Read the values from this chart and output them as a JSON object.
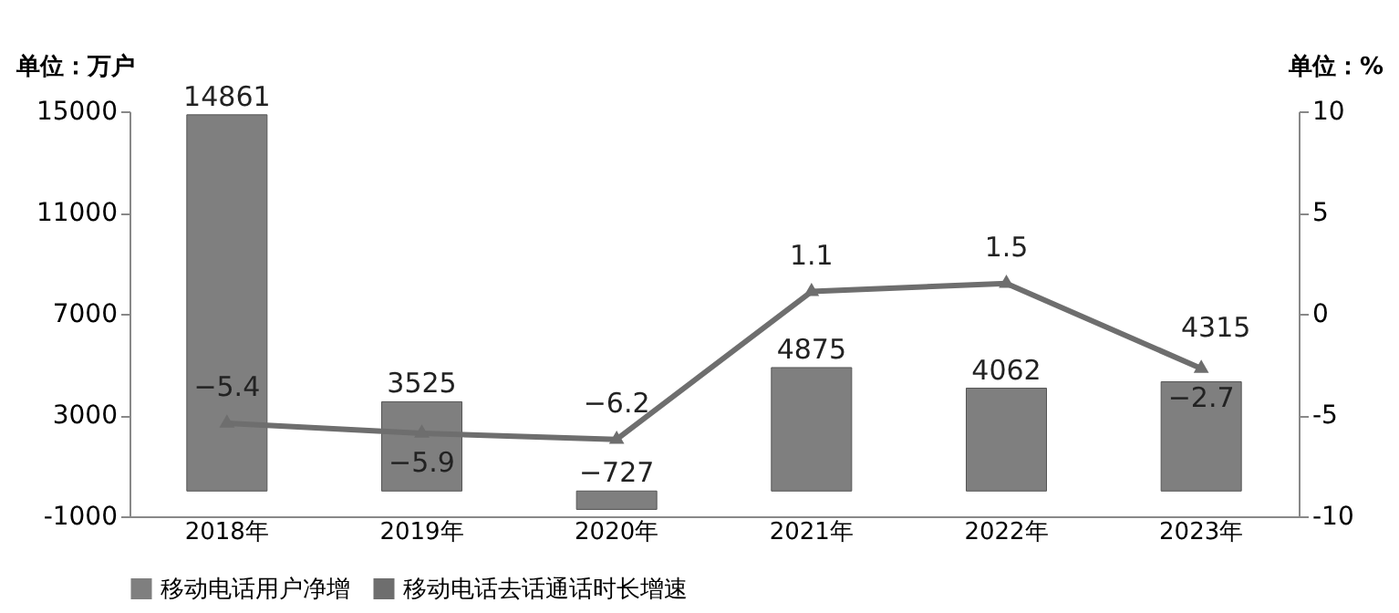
{
  "chart_data": {
    "type": "bar",
    "ylabel": "单位：万户",
    "y2label": "单位：%",
    "categories": [
      "2018年",
      "2019年",
      "2020年",
      "2021年",
      "2022年",
      "2023年"
    ],
    "series": [
      {
        "name": "移动电话用户净增",
        "color": "#7f7f7f",
        "values": [
          14861,
          3525,
          -727,
          4875,
          4062,
          4315
        ]
      },
      {
        "name": "移动电话去话通话时长增速",
        "type": "line",
        "axis": "y2",
        "color": "#6e6e6e",
        "marker": "triangle",
        "values": [
          -5.4,
          -5.9,
          -6.2,
          1.1,
          1.5,
          -2.7
        ]
      }
    ],
    "ylim": [
      -1000,
      15000
    ],
    "yticks": [
      -1000,
      3000,
      7000,
      11000,
      15000
    ],
    "y2lim": [
      -10,
      10
    ],
    "y2ticks": [
      -10,
      -5,
      0,
      5,
      10
    ],
    "data_labels": true,
    "grid": false,
    "legend": "bottom"
  }
}
